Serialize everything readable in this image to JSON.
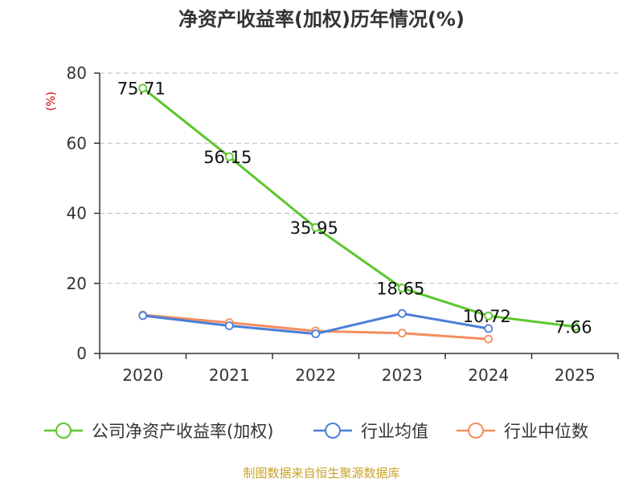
{
  "chart_data": {
    "type": "line",
    "title": "净资产收益率(加权)历年情况(%)",
    "ylabel": "(%)",
    "ylim": [
      0,
      80
    ],
    "yticks": [
      "0",
      "20",
      "40",
      "60",
      "80"
    ],
    "categories": [
      "2020",
      "2021",
      "2022",
      "2023",
      "2024",
      "2025"
    ],
    "grid": true,
    "legend_position": "bottom",
    "series": [
      {
        "name": "公司净资产收益率(加权)",
        "color": "#5cc62c",
        "values": [
          75.71,
          56.15,
          35.95,
          18.65,
          10.72,
          7.66
        ],
        "labels": [
          "75.71",
          "56.15",
          "35.95",
          "18.65",
          "10.72",
          "7.66"
        ]
      },
      {
        "name": "行业均值",
        "color": "#4a7fd9",
        "values": [
          10.8,
          7.9,
          5.6,
          11.4,
          7.1,
          null
        ]
      },
      {
        "name": "行业中位数",
        "color": "#f58d5e",
        "values": [
          11.0,
          8.8,
          6.4,
          5.8,
          4.1,
          null
        ]
      }
    ]
  },
  "source": "制图数据来自恒生聚源数据库"
}
